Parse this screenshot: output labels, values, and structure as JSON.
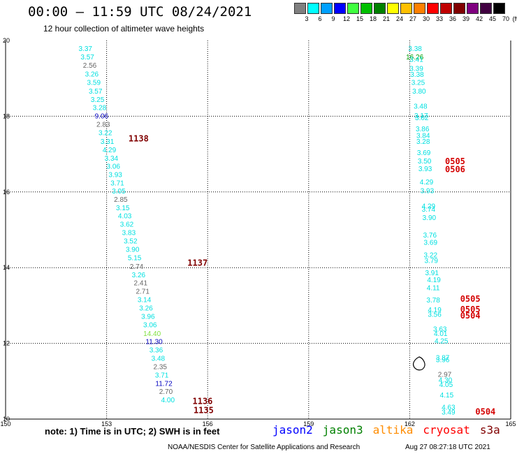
{
  "header": {
    "title": "00:00 – 11:59 UTC 08/24/2021",
    "subtitle": "12 hour collection of altimeter wave heights"
  },
  "legend": {
    "unit": "(ft)",
    "bins": [
      {
        "label": "3",
        "color": "#808080"
      },
      {
        "label": "6",
        "color": "#00ffff"
      },
      {
        "label": "9",
        "color": "#00a0ff"
      },
      {
        "label": "12",
        "color": "#0000ff"
      },
      {
        "label": "15",
        "color": "#40ff40"
      },
      {
        "label": "18",
        "color": "#00c000"
      },
      {
        "label": "21",
        "color": "#008000"
      },
      {
        "label": "24",
        "color": "#ffff00"
      },
      {
        "label": "27",
        "color": "#ffc000"
      },
      {
        "label": "30",
        "color": "#ff8000"
      },
      {
        "label": "33",
        "color": "#ff0000"
      },
      {
        "label": "36",
        "color": "#c00000"
      },
      {
        "label": "39",
        "color": "#800000"
      },
      {
        "label": "42",
        "color": "#800080"
      },
      {
        "label": "45",
        "color": "#400040"
      },
      {
        "label": "70",
        "color": "#000000"
      }
    ]
  },
  "map": {
    "lon_ticks": [
      "150",
      "153",
      "156",
      "159",
      "162",
      "165"
    ],
    "lat_ticks": [
      "20",
      "18",
      "16",
      "14",
      "12",
      "10"
    ],
    "lon_range": [
      150,
      165
    ],
    "lat_range": [
      10,
      20
    ],
    "grid": "dotted"
  },
  "tracks": {
    "west": [
      {
        "v": "3.37",
        "lon": 152.37,
        "lat": 19.72,
        "c": "#00e0e0"
      },
      {
        "v": "3.57",
        "lon": 152.43,
        "lat": 19.5,
        "c": "#00e0e0"
      },
      {
        "v": "2.56",
        "lon": 152.5,
        "lat": 19.28,
        "c": "#666666"
      },
      {
        "v": "3.26",
        "lon": 152.56,
        "lat": 19.05,
        "c": "#00e0e0"
      },
      {
        "v": "3.59",
        "lon": 152.62,
        "lat": 18.83,
        "c": "#00e0e0"
      },
      {
        "v": "3.57",
        "lon": 152.67,
        "lat": 18.6,
        "c": "#00e0e0"
      },
      {
        "v": "3.25",
        "lon": 152.73,
        "lat": 18.38,
        "c": "#00e0e0"
      },
      {
        "v": "3.28",
        "lon": 152.79,
        "lat": 18.16,
        "c": "#00e0e0"
      },
      {
        "v": "9.06",
        "lon": 152.85,
        "lat": 17.94,
        "c": "#0000c0"
      },
      {
        "v": "2.83",
        "lon": 152.9,
        "lat": 17.72,
        "c": "#666666"
      },
      {
        "v": "3.22",
        "lon": 152.96,
        "lat": 17.5,
        "c": "#00e0e0"
      },
      {
        "v": "3.31",
        "lon": 153.02,
        "lat": 17.27,
        "c": "#00e0e0"
      },
      {
        "v": "4.29",
        "lon": 153.08,
        "lat": 17.05,
        "c": "#00e0e0"
      },
      {
        "v": "3.34",
        "lon": 153.14,
        "lat": 16.83,
        "c": "#00e0e0"
      },
      {
        "v": "3.06",
        "lon": 153.2,
        "lat": 16.61,
        "c": "#00e0e0"
      },
      {
        "v": "3.93",
        "lon": 153.26,
        "lat": 16.39,
        "c": "#00e0e0"
      },
      {
        "v": "3.71",
        "lon": 153.32,
        "lat": 16.17,
        "c": "#00e0e0"
      },
      {
        "v": "3.05",
        "lon": 153.36,
        "lat": 15.96,
        "c": "#00e0e0"
      },
      {
        "v": "2.85",
        "lon": 153.42,
        "lat": 15.74,
        "c": "#666666"
      },
      {
        "v": "3.15",
        "lon": 153.48,
        "lat": 15.52,
        "c": "#00e0e0"
      },
      {
        "v": "4.03",
        "lon": 153.54,
        "lat": 15.3,
        "c": "#00e0e0"
      },
      {
        "v": "3.62",
        "lon": 153.6,
        "lat": 15.08,
        "c": "#00e0e0"
      },
      {
        "v": "3.83",
        "lon": 153.66,
        "lat": 14.86,
        "c": "#00e0e0"
      },
      {
        "v": "3.52",
        "lon": 153.71,
        "lat": 14.64,
        "c": "#00e0e0"
      },
      {
        "v": "3.90",
        "lon": 153.77,
        "lat": 14.42,
        "c": "#00e0e0"
      },
      {
        "v": "5.15",
        "lon": 153.83,
        "lat": 14.2,
        "c": "#00e0e0"
      },
      {
        "v": "2.74",
        "lon": 153.89,
        "lat": 13.97,
        "c": "#666666"
      },
      {
        "v": "3.26",
        "lon": 153.95,
        "lat": 13.75,
        "c": "#00e0e0"
      },
      {
        "v": "2.41",
        "lon": 154.01,
        "lat": 13.53,
        "c": "#666666"
      },
      {
        "v": "2.71",
        "lon": 154.07,
        "lat": 13.31,
        "c": "#666666"
      },
      {
        "v": "3.14",
        "lon": 154.12,
        "lat": 13.09,
        "c": "#00e0e0"
      },
      {
        "v": "3.26",
        "lon": 154.17,
        "lat": 12.87,
        "c": "#00e0e0"
      },
      {
        "v": "3.96",
        "lon": 154.23,
        "lat": 12.65,
        "c": "#00e0e0"
      },
      {
        "v": "3.06",
        "lon": 154.29,
        "lat": 12.43,
        "c": "#00e0e0"
      },
      {
        "v": "14.40",
        "lon": 154.35,
        "lat": 12.2,
        "c": "#80e040"
      },
      {
        "v": "11.30",
        "lon": 154.41,
        "lat": 11.98,
        "c": "#0000c0"
      },
      {
        "v": "3.36",
        "lon": 154.47,
        "lat": 11.76,
        "c": "#00e0e0"
      },
      {
        "v": "3.48",
        "lon": 154.53,
        "lat": 11.54,
        "c": "#00e0e0"
      },
      {
        "v": "2.35",
        "lon": 154.59,
        "lat": 11.32,
        "c": "#666666"
      },
      {
        "v": "3.71",
        "lon": 154.64,
        "lat": 11.1,
        "c": "#00e0e0"
      },
      {
        "v": "11.72",
        "lon": 154.7,
        "lat": 10.88,
        "c": "#0000c0"
      },
      {
        "v": "2.70",
        "lon": 154.76,
        "lat": 10.66,
        "c": "#666666"
      },
      {
        "v": "4.00",
        "lon": 154.82,
        "lat": 10.44,
        "c": "#00e0e0"
      }
    ],
    "east": [
      {
        "v": "3.38",
        "lon": 162.16,
        "lat": 19.72,
        "c": "#00e0e0"
      },
      {
        "v": "16.26",
        "lon": 162.15,
        "lat": 19.5,
        "c": "#00a000"
      },
      {
        "v": "3.41",
        "lon": 162.2,
        "lat": 19.44,
        "c": "#00e0e0"
      },
      {
        "v": "3.39",
        "lon": 162.2,
        "lat": 19.2,
        "c": "#00e0e0"
      },
      {
        "v": "3.38",
        "lon": 162.22,
        "lat": 19.04,
        "c": "#00e0e0"
      },
      {
        "v": "3.25",
        "lon": 162.25,
        "lat": 18.83,
        "c": "#00e0e0"
      },
      {
        "v": "3.80",
        "lon": 162.28,
        "lat": 18.6,
        "c": "#00e0e0"
      },
      {
        "v": "3.48",
        "lon": 162.32,
        "lat": 18.2,
        "c": "#00e0e0"
      },
      {
        "v": "3.17",
        "lon": 162.34,
        "lat": 17.95,
        "c": "#00e0e0"
      },
      {
        "v": "3.02",
        "lon": 162.36,
        "lat": 17.9,
        "c": "#00e0e0"
      },
      {
        "v": "3.86",
        "lon": 162.38,
        "lat": 17.6,
        "c": "#00e0e0"
      },
      {
        "v": "3.84",
        "lon": 162.4,
        "lat": 17.43,
        "c": "#00e0e0"
      },
      {
        "v": "3.28",
        "lon": 162.4,
        "lat": 17.27,
        "c": "#00e0e0"
      },
      {
        "v": "3.69",
        "lon": 162.42,
        "lat": 16.97,
        "c": "#00e0e0"
      },
      {
        "v": "3.50",
        "lon": 162.44,
        "lat": 16.75,
        "c": "#00e0e0"
      },
      {
        "v": "3.93",
        "lon": 162.46,
        "lat": 16.55,
        "c": "#00e0e0"
      },
      {
        "v": "4.29",
        "lon": 162.5,
        "lat": 16.2,
        "c": "#00e0e0"
      },
      {
        "v": "3.93",
        "lon": 162.52,
        "lat": 15.97,
        "c": "#00e0e0"
      },
      {
        "v": "4.29",
        "lon": 162.56,
        "lat": 15.56,
        "c": "#00e0e0"
      },
      {
        "v": "3.74",
        "lon": 162.56,
        "lat": 15.48,
        "c": "#00e0e0"
      },
      {
        "v": "3.90",
        "lon": 162.58,
        "lat": 15.26,
        "c": "#00e0e0"
      },
      {
        "v": "3.76",
        "lon": 162.6,
        "lat": 14.8,
        "c": "#00e0e0"
      },
      {
        "v": "3.69",
        "lon": 162.62,
        "lat": 14.6,
        "c": "#00e0e0"
      },
      {
        "v": "3.22",
        "lon": 162.62,
        "lat": 14.27,
        "c": "#00e0e0"
      },
      {
        "v": "3.79",
        "lon": 162.64,
        "lat": 14.12,
        "c": "#00e0e0"
      },
      {
        "v": "3.91",
        "lon": 162.66,
        "lat": 13.8,
        "c": "#00e0e0"
      },
      {
        "v": "4.19",
        "lon": 162.72,
        "lat": 13.62,
        "c": "#00e0e0"
      },
      {
        "v": "4.11",
        "lon": 162.7,
        "lat": 13.4,
        "c": "#00e0e0"
      },
      {
        "v": "3.78",
        "lon": 162.7,
        "lat": 13.08,
        "c": "#00e0e0"
      },
      {
        "v": "4.19",
        "lon": 162.74,
        "lat": 12.82,
        "c": "#00e0e0"
      },
      {
        "v": "3.56",
        "lon": 162.74,
        "lat": 12.7,
        "c": "#00e0e0"
      },
      {
        "v": "3.63",
        "lon": 162.9,
        "lat": 12.32,
        "c": "#00e0e0"
      },
      {
        "v": "4.01",
        "lon": 162.92,
        "lat": 12.2,
        "c": "#00e0e0"
      },
      {
        "v": "4.25",
        "lon": 162.94,
        "lat": 12.0,
        "c": "#00e0e0"
      },
      {
        "v": "3.87",
        "lon": 162.98,
        "lat": 11.56,
        "c": "#00e0e0"
      },
      {
        "v": "3.96",
        "lon": 162.98,
        "lat": 11.5,
        "c": "#00e0e0"
      },
      {
        "v": "2.97",
        "lon": 163.04,
        "lat": 11.12,
        "c": "#666666"
      },
      {
        "v": "4.30",
        "lon": 163.06,
        "lat": 10.97,
        "c": "#00e0e0"
      },
      {
        "v": "4.05",
        "lon": 163.08,
        "lat": 10.85,
        "c": "#00e0e0"
      },
      {
        "v": "4.15",
        "lon": 163.1,
        "lat": 10.57,
        "c": "#00e0e0"
      },
      {
        "v": "4.63",
        "lon": 163.15,
        "lat": 10.25,
        "c": "#00e0e0"
      },
      {
        "v": "3.49",
        "lon": 163.15,
        "lat": 10.12,
        "c": "#00e0e0"
      }
    ]
  },
  "passes": [
    {
      "id": "1138",
      "lon": 153.65,
      "lat": 17.33,
      "color": "dark"
    },
    {
      "id": "1137",
      "lon": 155.4,
      "lat": 14.05,
      "color": "dark"
    },
    {
      "id": "1136",
      "lon": 155.55,
      "lat": 10.4,
      "color": "dark"
    },
    {
      "id": "1135",
      "lon": 155.58,
      "lat": 10.16,
      "color": "dark"
    },
    {
      "id": "0505",
      "lon": 163.05,
      "lat": 16.73,
      "color": "red"
    },
    {
      "id": "0506",
      "lon": 163.05,
      "lat": 16.52,
      "color": "red"
    },
    {
      "id": "0505",
      "lon": 163.5,
      "lat": 13.1,
      "color": "red"
    },
    {
      "id": "0505",
      "lon": 163.5,
      "lat": 12.82,
      "color": "red"
    },
    {
      "id": "0504",
      "lon": 163.5,
      "lat": 12.66,
      "color": "red"
    },
    {
      "id": "0504",
      "lon": 163.95,
      "lat": 10.12,
      "color": "red"
    }
  ],
  "footer": {
    "note": "note: 1) Time is in UTC; 2) SWH is in feet",
    "missions": [
      {
        "name": "jason2",
        "color": "#0000ff"
      },
      {
        "name": "jason3",
        "color": "#008000"
      },
      {
        "name": "altika",
        "color": "#ff8c00"
      },
      {
        "name": "cryosat",
        "color": "#ff0000"
      },
      {
        "name": "s3a",
        "color": "#800000"
      }
    ],
    "credit": "NOAA/NESDIS Center for Satellite Applications and Research",
    "timestamp": "Aug 27 08:27:18 UTC 2021"
  }
}
